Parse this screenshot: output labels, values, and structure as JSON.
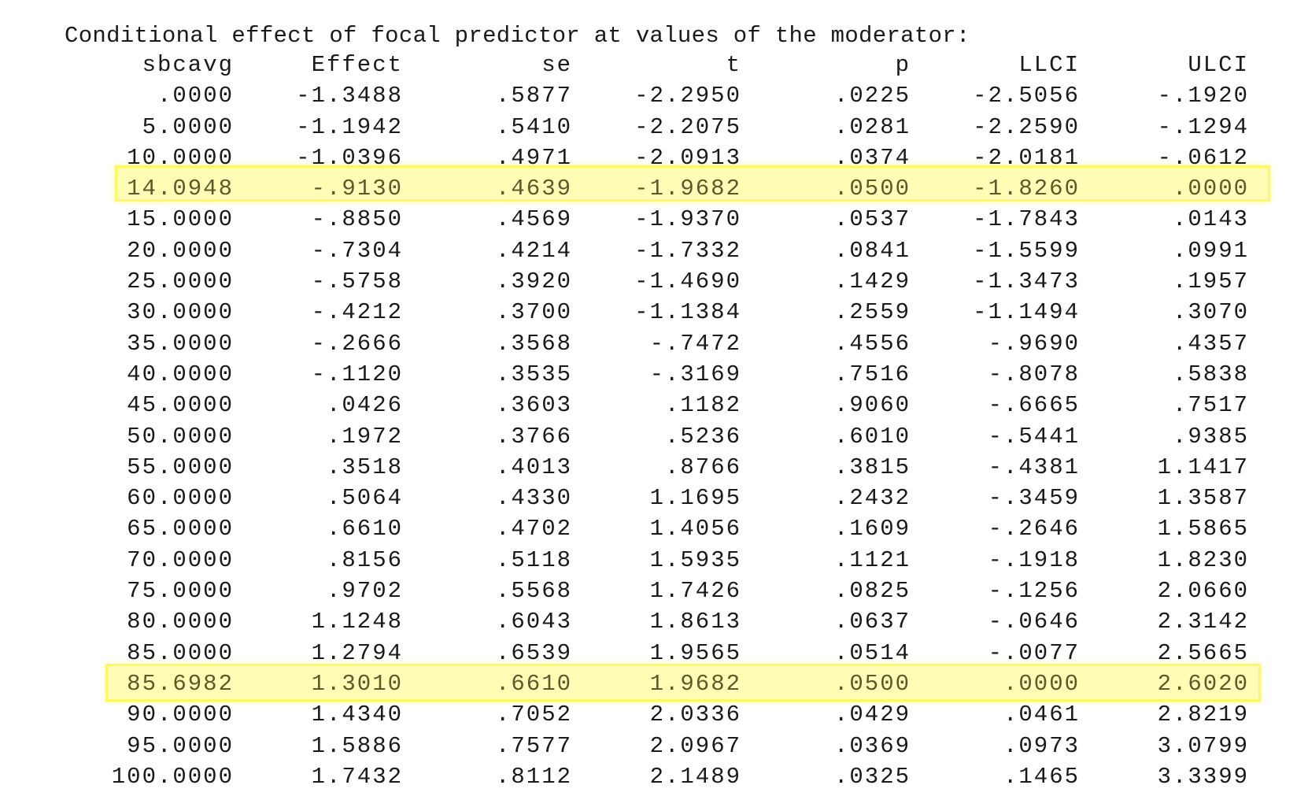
{
  "heading": "Conditional effect of focal predictor at values of the moderator:",
  "columns": [
    "sbcavg",
    "Effect",
    "se",
    "t",
    "p",
    "LLCI",
    "ULCI"
  ],
  "rows": [
    [
      ".0000",
      "-1.3488",
      ".5877",
      "-2.2950",
      ".0225",
      "-2.5056",
      "-.1920"
    ],
    [
      "5.0000",
      "-1.1942",
      ".5410",
      "-2.2075",
      ".0281",
      "-2.2590",
      "-.1294"
    ],
    [
      "10.0000",
      "-1.0396",
      ".4971",
      "-2.0913",
      ".0374",
      "-2.0181",
      "-.0612"
    ],
    [
      "14.0948",
      "-.9130",
      ".4639",
      "-1.9682",
      ".0500",
      "-1.8260",
      ".0000"
    ],
    [
      "15.0000",
      "-.8850",
      ".4569",
      "-1.9370",
      ".0537",
      "-1.7843",
      ".0143"
    ],
    [
      "20.0000",
      "-.7304",
      ".4214",
      "-1.7332",
      ".0841",
      "-1.5599",
      ".0991"
    ],
    [
      "25.0000",
      "-.5758",
      ".3920",
      "-1.4690",
      ".1429",
      "-1.3473",
      ".1957"
    ],
    [
      "30.0000",
      "-.4212",
      ".3700",
      "-1.1384",
      ".2559",
      "-1.1494",
      ".3070"
    ],
    [
      "35.0000",
      "-.2666",
      ".3568",
      "-.7472",
      ".4556",
      "-.9690",
      ".4357"
    ],
    [
      "40.0000",
      "-.1120",
      ".3535",
      "-.3169",
      ".7516",
      "-.8078",
      ".5838"
    ],
    [
      "45.0000",
      ".0426",
      ".3603",
      ".1182",
      ".9060",
      "-.6665",
      ".7517"
    ],
    [
      "50.0000",
      ".1972",
      ".3766",
      ".5236",
      ".6010",
      "-.5441",
      ".9385"
    ],
    [
      "55.0000",
      ".3518",
      ".4013",
      ".8766",
      ".3815",
      "-.4381",
      "1.1417"
    ],
    [
      "60.0000",
      ".5064",
      ".4330",
      "1.1695",
      ".2432",
      "-.3459",
      "1.3587"
    ],
    [
      "65.0000",
      ".6610",
      ".4702",
      "1.4056",
      ".1609",
      "-.2646",
      "1.5865"
    ],
    [
      "70.0000",
      ".8156",
      ".5118",
      "1.5935",
      ".1121",
      "-.1918",
      "1.8230"
    ],
    [
      "75.0000",
      ".9702",
      ".5568",
      "1.7426",
      ".0825",
      "-.1256",
      "2.0660"
    ],
    [
      "80.0000",
      "1.1248",
      ".6043",
      "1.8613",
      ".0637",
      "-.0646",
      "2.3142"
    ],
    [
      "85.0000",
      "1.2794",
      ".6539",
      "1.9565",
      ".0514",
      "-.0077",
      "2.5665"
    ],
    [
      "85.6982",
      "1.3010",
      ".6610",
      "1.9682",
      ".0500",
      ".0000",
      "2.6020"
    ],
    [
      "90.0000",
      "1.4340",
      ".7052",
      "2.0336",
      ".0429",
      ".0461",
      "2.8219"
    ],
    [
      "95.0000",
      "1.5886",
      ".7577",
      "2.0967",
      ".0369",
      ".0973",
      "3.0799"
    ],
    [
      "100.0000",
      "1.7432",
      ".8112",
      "2.1489",
      ".0325",
      ".1465",
      "3.3399"
    ]
  ],
  "highlighted_rows": [
    3,
    19
  ],
  "highlight_color": "#fff65a"
}
